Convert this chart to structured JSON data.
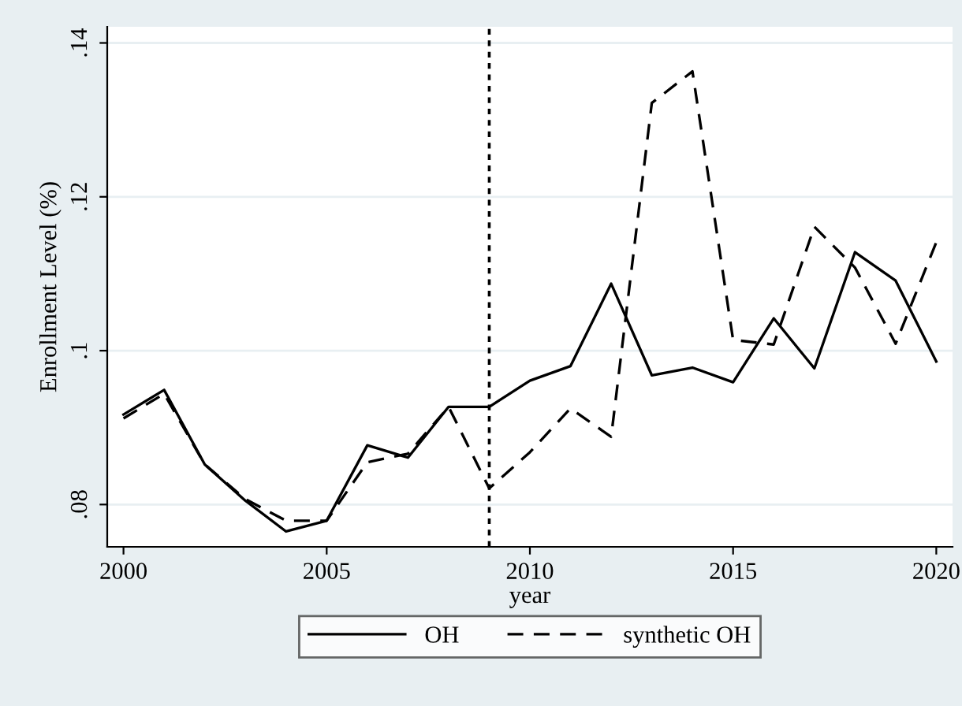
{
  "chart_data": {
    "type": "line",
    "xlabel": "year",
    "ylabel": "Enrollment Level (%)",
    "x": [
      2000,
      2001,
      2002,
      2003,
      2004,
      2005,
      2006,
      2007,
      2008,
      2009,
      2010,
      2011,
      2012,
      2013,
      2014,
      2015,
      2016,
      2017,
      2018,
      2019,
      2020
    ],
    "series": [
      {
        "name": "OH",
        "color": "#000000",
        "line_style": "solid",
        "values": [
          0.0917,
          0.0949,
          0.0852,
          0.0805,
          0.0765,
          0.0779,
          0.0877,
          0.0861,
          0.0927,
          0.0927,
          0.0961,
          0.098,
          0.1087,
          0.0968,
          0.0978,
          0.0959,
          0.1042,
          0.0977,
          0.1128,
          0.1091,
          0.0986
        ]
      },
      {
        "name": "synthetic OH",
        "color": "#000000",
        "line_style": "dashed",
        "values": [
          0.0912,
          0.0944,
          0.0852,
          0.0807,
          0.0779,
          0.0779,
          0.0855,
          0.0866,
          0.0927,
          0.0821,
          0.0868,
          0.0925,
          0.0888,
          0.1322,
          0.1363,
          0.1014,
          0.1008,
          0.1161,
          0.1108,
          0.1009,
          0.1141
        ]
      }
    ],
    "xlim": [
      1999.6,
      2020.4
    ],
    "xticks": [
      2000,
      2005,
      2010,
      2015,
      2020
    ],
    "ylim": [
      0.0745,
      0.1421
    ],
    "yticks": [
      {
        "value": 0.08,
        "label": ".08"
      },
      {
        "value": 0.1,
        "label": ".1"
      },
      {
        "value": 0.12,
        "label": ".12"
      },
      {
        "value": 0.14,
        "label": ".14"
      }
    ],
    "ref_lines": [
      {
        "axis": "x",
        "value": 2009,
        "color": "#000000",
        "line_style": "dotted"
      }
    ],
    "grid": "y",
    "legend": "bottom",
    "marker": "none"
  }
}
